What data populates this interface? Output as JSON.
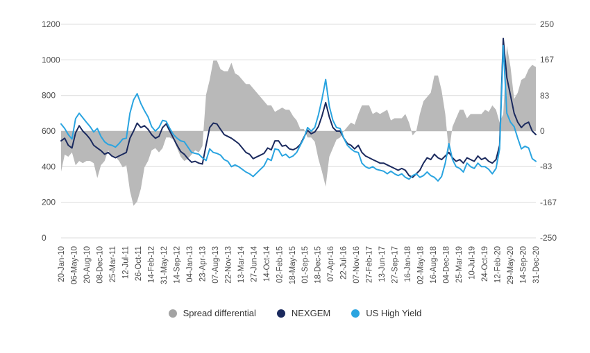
{
  "chart_data": {
    "type": "line+area",
    "title": "",
    "grid": "horizontal",
    "legend_position": "bottom",
    "colors": {
      "background": "#ffffff",
      "gridline": "#dcdcdc",
      "axis_text": "#4d4d4d"
    },
    "left_axis": {
      "min": 0,
      "max": 1200,
      "ticks": [
        0,
        200,
        400,
        600,
        800,
        1000,
        1200
      ],
      "tick_labels": [
        "0",
        "200",
        "400",
        "600",
        "800",
        "1000",
        "1200"
      ]
    },
    "right_axis": {
      "min": -250,
      "max": 250,
      "ticks": [
        250,
        167,
        83,
        0,
        -83,
        -167,
        -250
      ],
      "tick_labels": [
        "250",
        "167",
        "83",
        "0",
        "-83",
        "-167",
        "-250"
      ]
    },
    "x_tick_labels": [
      "20-Jan-10",
      "06-May-10",
      "20-Aug-10",
      "08-Dec-10",
      "25-Mar-11",
      "12-Jul-11",
      "26-Oct-11",
      "14-Feb-12",
      "31-May-12",
      "14-Sep-12",
      "04-Jan-13",
      "23-Apr-13",
      "07-Aug-13",
      "22-Nov-13",
      "13-Mar-14",
      "27-Jun-14",
      "14-Oct-14",
      "02-Feb-15",
      "18-May-15",
      "01-Sep-15",
      "18-Dec-15",
      "07-Apr-16",
      "22-Jul-16",
      "07-Nov-16",
      "27-Feb-17",
      "13-Jun-17",
      "27-Sep-17",
      "16-Jan-18",
      "02-May-18",
      "16-Aug-18",
      "04-Dec-18",
      "25-Mar-19",
      "10-Jul-19",
      "24-Oct-19",
      "12-Feb-20",
      "29-May-20",
      "14-Sep-20",
      "31-Dec-20"
    ],
    "series": [
      {
        "name": "Spread differential",
        "type": "area",
        "axis": "right",
        "color": "#b9b9b9",
        "marker_color": "#a3a3a3",
        "values": [
          -95,
          -55,
          -60,
          -50,
          -80,
          -70,
          -75,
          -70,
          -70,
          -75,
          -110,
          -80,
          -70,
          -45,
          -60,
          -60,
          -70,
          -85,
          -80,
          -140,
          -175,
          -165,
          -135,
          -85,
          -70,
          -45,
          -40,
          -50,
          -40,
          -15,
          -15,
          -20,
          -40,
          -60,
          -70,
          -65,
          -55,
          -45,
          -50,
          -35,
          85,
          120,
          165,
          165,
          145,
          140,
          140,
          160,
          135,
          130,
          120,
          110,
          110,
          100,
          90,
          80,
          70,
          60,
          60,
          45,
          50,
          55,
          50,
          50,
          35,
          25,
          5,
          5,
          -15,
          -15,
          -25,
          -65,
          -95,
          -130,
          -60,
          -40,
          -20,
          -15,
          0,
          10,
          20,
          15,
          40,
          60,
          60,
          60,
          40,
          45,
          40,
          45,
          50,
          25,
          30,
          30,
          30,
          40,
          20,
          -10,
          0,
          40,
          70,
          80,
          90,
          130,
          130,
          95,
          40,
          -50,
          10,
          30,
          50,
          50,
          30,
          40,
          40,
          40,
          40,
          50,
          45,
          60,
          50,
          20,
          40,
          200,
          150,
          75,
          90,
          120,
          125,
          145,
          155,
          150
        ]
      },
      {
        "name": "NEXGEM",
        "type": "line",
        "axis": "left",
        "color": "#1b2a5e",
        "marker_color": "#1b2a5e",
        "values": [
          545,
          560,
          520,
          505,
          590,
          630,
          600,
          580,
          555,
          520,
          505,
          490,
          470,
          480,
          460,
          450,
          460,
          470,
          480,
          560,
          600,
          645,
          620,
          630,
          610,
          580,
          560,
          570,
          620,
          640,
          600,
          560,
          520,
          485,
          470,
          445,
          425,
          430,
          420,
          415,
          520,
          620,
          645,
          640,
          610,
          580,
          570,
          560,
          545,
          530,
          505,
          480,
          470,
          445,
          455,
          465,
          475,
          505,
          495,
          545,
          545,
          515,
          520,
          500,
          495,
          505,
          525,
          565,
          605,
          585,
          595,
          625,
          685,
          760,
          680,
          620,
          600,
          600,
          560,
          530,
          520,
          500,
          520,
          480,
          460,
          450,
          440,
          430,
          420,
          420,
          410,
          400,
          390,
          380,
          390,
          380,
          350,
          340,
          360,
          380,
          420,
          450,
          440,
          470,
          450,
          440,
          460,
          480,
          450,
          430,
          440,
          420,
          450,
          440,
          430,
          460,
          440,
          450,
          430,
          420,
          440,
          520,
          1120,
          900,
          800,
          700,
          650,
          620,
          640,
          650,
          600,
          580
        ]
      },
      {
        "name": "US High Yield",
        "type": "line",
        "axis": "left",
        "color": "#2aa4e0",
        "marker_color": "#2aa4e0",
        "values": [
          640,
          615,
          580,
          555,
          670,
          700,
          675,
          650,
          625,
          595,
          615,
          570,
          540,
          525,
          520,
          510,
          530,
          555,
          560,
          700,
          775,
          810,
          755,
          715,
          680,
          625,
          600,
          620,
          660,
          655,
          615,
          580,
          560,
          545,
          540,
          510,
          480,
          475,
          470,
          450,
          435,
          500,
          480,
          475,
          465,
          440,
          430,
          400,
          410,
          400,
          385,
          370,
          360,
          345,
          365,
          385,
          405,
          445,
          435,
          500,
          495,
          460,
          470,
          450,
          460,
          480,
          520,
          560,
          620,
          600,
          620,
          690,
          780,
          890,
          740,
          660,
          620,
          615,
          560,
          520,
          500,
          485,
          480,
          420,
          400,
          390,
          400,
          385,
          380,
          375,
          360,
          375,
          360,
          350,
          360,
          340,
          330,
          350,
          360,
          340,
          350,
          370,
          350,
          340,
          320,
          345,
          420,
          530,
          440,
          400,
          390,
          370,
          420,
          400,
          390,
          420,
          400,
          400,
          385,
          360,
          390,
          500,
          1080,
          700,
          650,
          625,
          560,
          500,
          515,
          505,
          445,
          430
        ]
      }
    ]
  }
}
